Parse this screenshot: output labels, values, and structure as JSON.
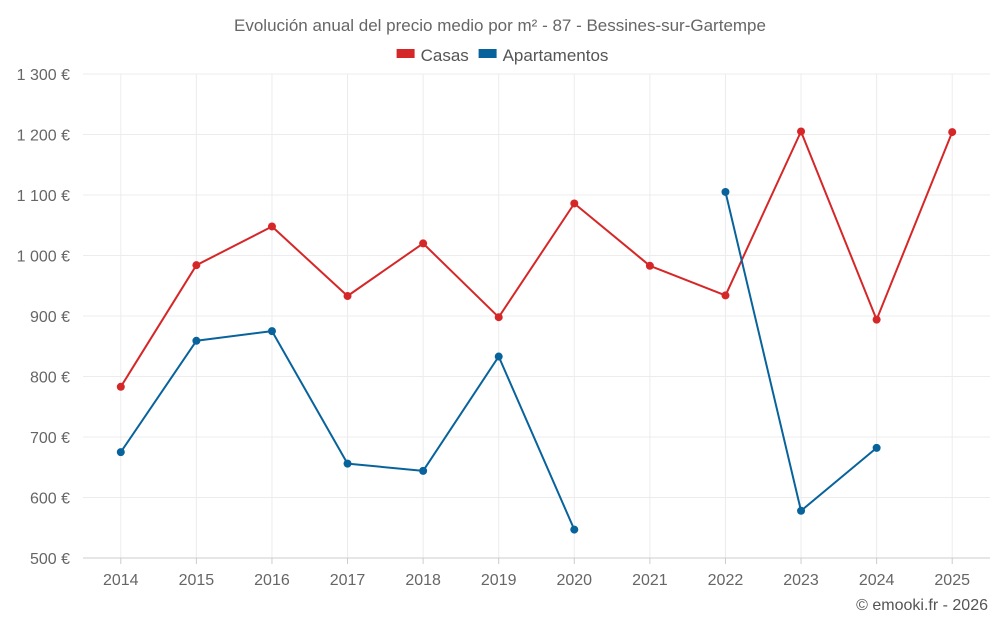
{
  "chart_data": {
    "type": "line",
    "title": "Evolución anual del precio medio por m² - 87 - Bessines-sur-Gartempe",
    "xlabel": "",
    "ylabel": "",
    "categories": [
      "2014",
      "2015",
      "2016",
      "2017",
      "2018",
      "2019",
      "2020",
      "2021",
      "2022",
      "2023",
      "2024",
      "2025"
    ],
    "ylim": [
      500,
      1300
    ],
    "yticks": [
      500,
      600,
      700,
      800,
      900,
      1000,
      1100,
      1200,
      1300
    ],
    "ytick_labels": [
      "500 €",
      "600 €",
      "700 €",
      "800 €",
      "900 €",
      "1 000 €",
      "1 100 €",
      "1 200 €",
      "1 300 €"
    ],
    "grid": true,
    "legend_position": "top-center",
    "series": [
      {
        "name": "Casas",
        "color": "#d62728",
        "values": [
          783,
          984,
          1048,
          933,
          1020,
          898,
          1086,
          983,
          934,
          1205,
          894,
          1204
        ]
      },
      {
        "name": "Apartamentos",
        "color": "#08639c",
        "values": [
          675,
          859,
          875,
          656,
          644,
          833,
          547,
          null,
          1105,
          578,
          682,
          null
        ]
      }
    ]
  },
  "credit": "© emooki.fr - 2026"
}
